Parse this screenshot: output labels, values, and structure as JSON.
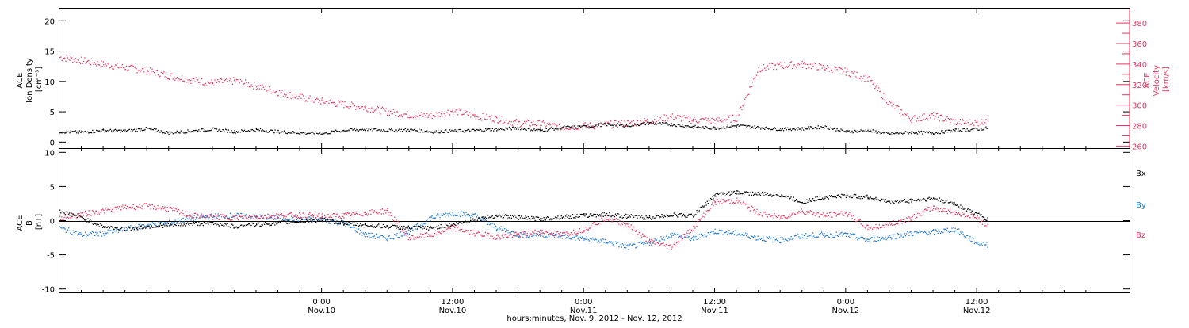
{
  "colors": {
    "black": "#000000",
    "red": "#e8365f",
    "blue": "#1f7ad6"
  },
  "time_axis": {
    "range_hours": [
      0,
      98
    ],
    "note_units": "hours since 2012-11-09 00:00 UT",
    "ticks": [
      {
        "h": 24,
        "time": "0:00",
        "date": "Nov.10"
      },
      {
        "h": 36,
        "time": "12:00",
        "date": "Nov.10"
      },
      {
        "h": 48,
        "time": "0:00",
        "date": "Nov.11"
      },
      {
        "h": 60,
        "time": "12:00",
        "date": "Nov.11"
      },
      {
        "h": 72,
        "time": "0:00",
        "date": "Nov.12"
      },
      {
        "h": 84,
        "time": "12:00",
        "date": "Nov.12"
      }
    ],
    "label": "hours:minutes, Nov.  9, 2012 - Nov. 12, 2012"
  },
  "chart_data": [
    {
      "type": "scatter",
      "panel": "plasma",
      "xlabel": "hours:minutes, Nov.  9, 2012 - Nov. 12, 2012",
      "left_axis": {
        "label_lines": [
          "ACE",
          "Ion Density",
          "[cm⁻³]"
        ],
        "ylim": [
          -1,
          22
        ],
        "ticks": [
          "0",
          "5",
          "10",
          "15",
          "20"
        ],
        "tick_values": [
          0,
          5,
          10,
          15,
          20
        ]
      },
      "right_axis": {
        "label_lines": [
          "ACE",
          "Velocity",
          "[km/s]"
        ],
        "ylim": [
          258,
          394
        ],
        "ticks": [
          "260",
          "280",
          "300",
          "320",
          "340",
          "360",
          "380"
        ],
        "tick_values": [
          260,
          280,
          300,
          320,
          340,
          360,
          380
        ]
      },
      "series": [
        {
          "name": "Ion Density",
          "axis": "left",
          "color": "#000000",
          "x": [
            0,
            2,
            4,
            6,
            8,
            10,
            12,
            14,
            16,
            18,
            20,
            22,
            24,
            26,
            28,
            30,
            32,
            34,
            36,
            38,
            40,
            42,
            44,
            46,
            48,
            50,
            52,
            54,
            56,
            58,
            60,
            62,
            64,
            66,
            68,
            70,
            72,
            74,
            76,
            78,
            80,
            82,
            84,
            85
          ],
          "y": [
            1.8,
            1.7,
            2.0,
            1.9,
            2.3,
            1.6,
            1.9,
            2.2,
            1.8,
            2.1,
            1.8,
            1.6,
            1.5,
            2.0,
            2.2,
            2.0,
            2.1,
            1.8,
            1.9,
            2.0,
            2.2,
            2.4,
            2.0,
            2.5,
            2.6,
            3.0,
            2.8,
            3.2,
            3.0,
            2.6,
            2.4,
            2.8,
            2.5,
            2.2,
            2.3,
            2.6,
            1.8,
            2.0,
            1.4,
            1.7,
            1.6,
            2.0,
            2.2,
            2.4
          ]
        },
        {
          "name": "Velocity",
          "axis": "right",
          "color": "#e8365f",
          "x": [
            0,
            2,
            4,
            6,
            8,
            10,
            12,
            14,
            16,
            18,
            20,
            22,
            24,
            26,
            28,
            30,
            32,
            34,
            36,
            38,
            40,
            42,
            44,
            46,
            48,
            50,
            52,
            54,
            56,
            58,
            60,
            62,
            64,
            66,
            68,
            70,
            72,
            74,
            76,
            78,
            80,
            82,
            84,
            85
          ],
          "y": [
            347,
            344,
            340,
            337,
            334,
            329,
            325,
            322,
            324,
            319,
            313,
            308,
            304,
            301,
            298,
            294,
            291,
            290,
            295,
            290,
            287,
            283,
            282,
            279,
            280,
            281,
            283,
            285,
            289,
            286,
            285,
            288,
            336,
            339,
            340,
            337,
            333,
            326,
            302,
            287,
            290,
            284,
            283,
            287
          ]
        }
      ]
    },
    {
      "type": "scatter",
      "panel": "magnetic-field",
      "xlabel": "hours:minutes, Nov.  9, 2012 - Nov. 12, 2012",
      "left_axis": {
        "label_lines": [
          "ACE",
          "B",
          "[nT]"
        ],
        "ylim": [
          -10.5,
          10.5
        ],
        "ticks": [
          "-10",
          "-5",
          "0",
          "5",
          "10"
        ],
        "tick_values": [
          -10,
          -5,
          0,
          5,
          10
        ]
      },
      "legend": [
        "Bx",
        "By",
        "Bz"
      ],
      "series": [
        {
          "name": "Bx",
          "color": "#000000",
          "x": [
            0,
            2,
            4,
            6,
            8,
            10,
            12,
            14,
            16,
            18,
            20,
            22,
            24,
            26,
            28,
            30,
            32,
            34,
            36,
            38,
            40,
            42,
            44,
            46,
            48,
            50,
            52,
            54,
            56,
            58,
            60,
            62,
            64,
            66,
            68,
            70,
            72,
            74,
            76,
            78,
            80,
            82,
            84,
            85
          ],
          "y": [
            1.5,
            0.5,
            -0.8,
            -1.2,
            -0.8,
            -0.6,
            -0.4,
            -0.3,
            -0.8,
            -0.5,
            -0.3,
            0.0,
            0.2,
            -0.3,
            -0.6,
            -0.8,
            -1.0,
            -1.0,
            -0.5,
            0.2,
            0.8,
            0.5,
            0.3,
            0.6,
            0.8,
            1.0,
            0.7,
            0.5,
            0.9,
            0.8,
            3.8,
            4.2,
            4.0,
            3.8,
            2.8,
            3.5,
            3.7,
            3.5,
            2.8,
            3.0,
            3.3,
            2.5,
            1.0,
            0.2
          ]
        },
        {
          "name": "By",
          "color": "#1f7ad6",
          "x": [
            0,
            2,
            4,
            6,
            8,
            10,
            12,
            14,
            16,
            18,
            20,
            22,
            24,
            26,
            28,
            30,
            32,
            34,
            36,
            38,
            40,
            42,
            44,
            46,
            48,
            50,
            52,
            54,
            56,
            58,
            60,
            62,
            64,
            66,
            68,
            70,
            72,
            74,
            76,
            78,
            80,
            82,
            84,
            85
          ],
          "y": [
            -1.0,
            -2.0,
            -1.8,
            -1.2,
            -0.6,
            -0.3,
            0.4,
            0.7,
            0.8,
            0.6,
            0.5,
            0.3,
            0.2,
            -0.3,
            -2.0,
            -2.5,
            -1.5,
            0.5,
            1.2,
            0.8,
            -1.0,
            -2.0,
            -2.0,
            -2.2,
            -2.6,
            -3.0,
            -3.8,
            -3.2,
            -2.0,
            -2.6,
            -1.5,
            -1.8,
            -2.5,
            -2.8,
            -2.2,
            -2.0,
            -2.0,
            -2.8,
            -2.3,
            -1.8,
            -1.6,
            -1.2,
            -3.2,
            -3.5
          ]
        },
        {
          "name": "Bz",
          "color": "#e8365f",
          "x": [
            0,
            2,
            4,
            6,
            8,
            10,
            12,
            14,
            16,
            18,
            20,
            22,
            24,
            26,
            28,
            30,
            32,
            34,
            36,
            38,
            40,
            42,
            44,
            46,
            48,
            50,
            52,
            54,
            56,
            58,
            60,
            62,
            64,
            66,
            68,
            70,
            72,
            74,
            76,
            78,
            80,
            82,
            84,
            85
          ],
          "y": [
            0.5,
            1.0,
            1.5,
            2.0,
            2.2,
            1.8,
            0.8,
            0.6,
            0.5,
            0.6,
            0.8,
            0.9,
            0.7,
            0.8,
            1.2,
            1.5,
            -2.5,
            -2.0,
            -1.0,
            -1.8,
            -2.3,
            -2.0,
            -1.5,
            -2.0,
            -1.2,
            0.5,
            -0.5,
            -3.0,
            -3.8,
            -1.0,
            2.8,
            3.0,
            1.2,
            0.5,
            1.5,
            0.8,
            1.2,
            -1.0,
            -0.5,
            0.5,
            2.0,
            1.2,
            0.5,
            -0.8
          ]
        }
      ]
    }
  ]
}
